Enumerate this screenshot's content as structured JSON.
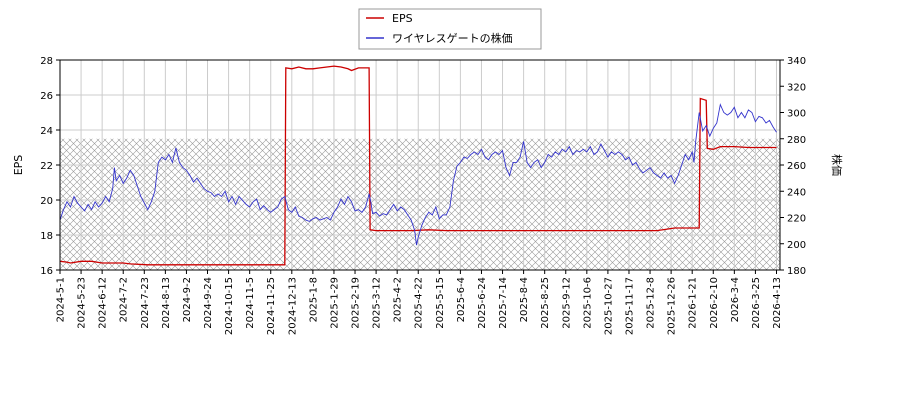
{
  "chart_data": {
    "type": "line",
    "title": "",
    "xlabel": "",
    "ylabel_left": "EPS",
    "ylabel_right": "株価",
    "ylim_left": [
      16,
      28
    ],
    "ylim_right": [
      180,
      340
    ],
    "yticks_left": [
      16,
      18,
      20,
      22,
      24,
      26,
      28
    ],
    "yticks_right": [
      180,
      200,
      220,
      240,
      260,
      280,
      300,
      320,
      340
    ],
    "x_tick_labels": [
      "2024-5-1",
      "2024-5-23",
      "2024-6-12",
      "2024-7-2",
      "2024-7-23",
      "2024-8-13",
      "2024-9-2",
      "2024-9-24",
      "2024-10-15",
      "2024-11-5",
      "2024-11-25",
      "2024-12-13",
      "2025-1-8",
      "2025-1-29",
      "2025-2-19",
      "2025-3-12",
      "2025-4-2",
      "2025-4-22",
      "2025-5-15",
      "2025-6-4",
      "2025-6-24",
      "2025-7-14",
      "2025-8-4",
      "2025-8-25",
      "2025-9-12",
      "2025-10-6",
      "2025-10-27",
      "2025-11-17",
      "2025-12-8",
      "2025-12-26",
      "2026-1-21",
      "2026-2-10",
      "2026-3-4",
      "2026-3-25",
      "2026-4-13"
    ],
    "grid": true,
    "legend_position": "top-center",
    "hatched_band_right": [
      180,
      280
    ],
    "series": [
      {
        "name": "EPS",
        "axis": "left",
        "color": "#cc0000",
        "points": [
          [
            0,
            16.5
          ],
          [
            2,
            16.45
          ],
          [
            3,
            16.4
          ],
          [
            6,
            16.5
          ],
          [
            9,
            16.5
          ],
          [
            12,
            16.4
          ],
          [
            15,
            16.4
          ],
          [
            18,
            16.4
          ],
          [
            20,
            16.35
          ],
          [
            25,
            16.3
          ],
          [
            30,
            16.3
          ],
          [
            35,
            16.3
          ],
          [
            40,
            16.3
          ],
          [
            45,
            16.3
          ],
          [
            50,
            16.3
          ],
          [
            55,
            16.3
          ],
          [
            60,
            16.3
          ],
          [
            64,
            16.3
          ],
          [
            64.3,
            27.55
          ],
          [
            66,
            27.5
          ],
          [
            68,
            27.6
          ],
          [
            70,
            27.5
          ],
          [
            72,
            27.5
          ],
          [
            74,
            27.55
          ],
          [
            76,
            27.6
          ],
          [
            78,
            27.65
          ],
          [
            80,
            27.6
          ],
          [
            82,
            27.5
          ],
          [
            83,
            27.4
          ],
          [
            85,
            27.55
          ],
          [
            88,
            27.55
          ],
          [
            88.3,
            18.3
          ],
          [
            90,
            18.25
          ],
          [
            95,
            18.25
          ],
          [
            100,
            18.25
          ],
          [
            105,
            18.3
          ],
          [
            110,
            18.25
          ],
          [
            115,
            18.25
          ],
          [
            120,
            18.25
          ],
          [
            125,
            18.25
          ],
          [
            130,
            18.25
          ],
          [
            135,
            18.25
          ],
          [
            140,
            18.25
          ],
          [
            145,
            18.25
          ],
          [
            150,
            18.25
          ],
          [
            155,
            18.25
          ],
          [
            160,
            18.25
          ],
          [
            165,
            18.25
          ],
          [
            170,
            18.25
          ],
          [
            175,
            18.4
          ],
          [
            180,
            18.4
          ],
          [
            182,
            18.4
          ],
          [
            182.3,
            25.8
          ],
          [
            184,
            25.7
          ],
          [
            184.3,
            22.95
          ],
          [
            186,
            22.9
          ],
          [
            188,
            23.05
          ],
          [
            192,
            23.05
          ],
          [
            196,
            23.0
          ],
          [
            200,
            23.0
          ],
          [
            204,
            23.0
          ]
        ]
      },
      {
        "name": "ワイヤレスゲートの株価",
        "axis": "right",
        "color": "#3333cc",
        "points": [
          [
            0,
            218
          ],
          [
            1,
            226
          ],
          [
            2,
            232
          ],
          [
            3,
            228
          ],
          [
            4,
            236
          ],
          [
            5,
            231
          ],
          [
            6,
            228
          ],
          [
            7,
            225
          ],
          [
            8,
            230
          ],
          [
            9,
            226
          ],
          [
            10,
            232
          ],
          [
            11,
            228
          ],
          [
            12,
            231
          ],
          [
            13,
            236
          ],
          [
            14,
            232
          ],
          [
            15,
            242
          ],
          [
            15.5,
            258
          ],
          [
            16,
            248
          ],
          [
            17,
            252
          ],
          [
            18,
            246
          ],
          [
            19,
            250
          ],
          [
            20,
            256
          ],
          [
            21,
            252
          ],
          [
            22,
            244
          ],
          [
            23,
            236
          ],
          [
            24,
            231
          ],
          [
            25,
            226
          ],
          [
            26,
            232
          ],
          [
            27,
            240
          ],
          [
            28,
            262
          ],
          [
            29,
            266
          ],
          [
            30,
            264
          ],
          [
            31,
            268
          ],
          [
            32,
            262
          ],
          [
            33,
            273
          ],
          [
            34,
            262
          ],
          [
            35,
            258
          ],
          [
            36,
            256
          ],
          [
            37,
            252
          ],
          [
            38,
            247
          ],
          [
            39,
            250
          ],
          [
            40,
            246
          ],
          [
            41,
            242
          ],
          [
            42,
            240
          ],
          [
            43,
            239
          ],
          [
            44,
            236
          ],
          [
            45,
            238
          ],
          [
            46,
            236
          ],
          [
            47,
            240
          ],
          [
            48,
            232
          ],
          [
            49,
            236
          ],
          [
            50,
            230
          ],
          [
            51,
            236
          ],
          [
            52,
            233
          ],
          [
            53,
            230
          ],
          [
            54,
            228
          ],
          [
            55,
            232
          ],
          [
            56,
            234
          ],
          [
            57,
            226
          ],
          [
            58,
            229
          ],
          [
            59,
            226
          ],
          [
            60,
            224
          ],
          [
            61,
            226
          ],
          [
            62,
            228
          ],
          [
            63,
            234
          ],
          [
            64,
            236
          ],
          [
            65,
            226
          ],
          [
            66,
            224
          ],
          [
            67,
            228
          ],
          [
            68,
            221
          ],
          [
            69,
            220
          ],
          [
            70,
            218
          ],
          [
            71,
            217
          ],
          [
            72,
            219
          ],
          [
            73,
            220
          ],
          [
            74,
            218
          ],
          [
            75,
            219
          ],
          [
            76,
            220
          ],
          [
            77,
            218
          ],
          [
            78,
            224
          ],
          [
            79,
            228
          ],
          [
            80,
            234
          ],
          [
            81,
            230
          ],
          [
            82,
            236
          ],
          [
            83,
            232
          ],
          [
            84,
            225
          ],
          [
            85,
            226
          ],
          [
            86,
            224
          ],
          [
            87,
            228
          ],
          [
            88,
            238
          ],
          [
            88.5,
            232
          ],
          [
            89,
            223
          ],
          [
            90,
            224
          ],
          [
            91,
            221
          ],
          [
            92,
            223
          ],
          [
            93,
            222
          ],
          [
            94,
            226
          ],
          [
            95,
            230
          ],
          [
            96,
            225
          ],
          [
            97,
            228
          ],
          [
            98,
            226
          ],
          [
            99,
            222
          ],
          [
            100,
            218
          ],
          [
            101,
            210
          ],
          [
            101.5,
            199
          ],
          [
            102,
            205
          ],
          [
            103,
            214
          ],
          [
            104,
            220
          ],
          [
            105,
            224
          ],
          [
            106,
            222
          ],
          [
            107,
            228
          ],
          [
            108,
            219
          ],
          [
            109,
            222
          ],
          [
            110,
            222
          ],
          [
            111,
            228
          ],
          [
            112,
            248
          ],
          [
            113,
            259
          ],
          [
            114,
            262
          ],
          [
            115,
            266
          ],
          [
            116,
            265
          ],
          [
            117,
            268
          ],
          [
            118,
            270
          ],
          [
            119,
            268
          ],
          [
            120,
            272
          ],
          [
            121,
            266
          ],
          [
            122,
            264
          ],
          [
            123,
            268
          ],
          [
            124,
            270
          ],
          [
            125,
            268
          ],
          [
            126,
            271
          ],
          [
            127,
            258
          ],
          [
            128,
            252
          ],
          [
            129,
            262
          ],
          [
            130,
            262
          ],
          [
            131,
            266
          ],
          [
            132,
            278
          ],
          [
            133,
            262
          ],
          [
            134,
            258
          ],
          [
            135,
            262
          ],
          [
            136,
            264
          ],
          [
            137,
            258
          ],
          [
            138,
            262
          ],
          [
            139,
            268
          ],
          [
            140,
            266
          ],
          [
            141,
            270
          ],
          [
            142,
            268
          ],
          [
            143,
            272
          ],
          [
            144,
            270
          ],
          [
            145,
            274
          ],
          [
            146,
            268
          ],
          [
            147,
            271
          ],
          [
            148,
            270
          ],
          [
            149,
            272
          ],
          [
            150,
            270
          ],
          [
            151,
            274
          ],
          [
            152,
            268
          ],
          [
            153,
            270
          ],
          [
            154,
            276
          ],
          [
            155,
            271
          ],
          [
            156,
            266
          ],
          [
            157,
            270
          ],
          [
            158,
            268
          ],
          [
            159,
            270
          ],
          [
            160,
            268
          ],
          [
            161,
            264
          ],
          [
            162,
            266
          ],
          [
            163,
            260
          ],
          [
            164,
            262
          ],
          [
            165,
            257
          ],
          [
            166,
            254
          ],
          [
            167,
            256
          ],
          [
            168,
            258
          ],
          [
            169,
            254
          ],
          [
            170,
            252
          ],
          [
            171,
            250
          ],
          [
            172,
            254
          ],
          [
            173,
            250
          ],
          [
            174,
            252
          ],
          [
            175,
            246
          ],
          [
            176,
            252
          ],
          [
            177,
            260
          ],
          [
            178,
            268
          ],
          [
            179,
            264
          ],
          [
            180,
            270
          ],
          [
            180.5,
            262
          ],
          [
            181,
            278
          ],
          [
            182,
            300
          ],
          [
            183,
            286
          ],
          [
            184,
            290
          ],
          [
            185,
            282
          ],
          [
            186,
            288
          ],
          [
            187,
            292
          ],
          [
            188,
            306
          ],
          [
            189,
            300
          ],
          [
            190,
            298
          ],
          [
            191,
            300
          ],
          [
            192,
            304
          ],
          [
            193,
            296
          ],
          [
            194,
            300
          ],
          [
            195,
            296
          ],
          [
            196,
            302
          ],
          [
            197,
            300
          ],
          [
            198,
            293
          ],
          [
            199,
            297
          ],
          [
            200,
            296
          ],
          [
            201,
            292
          ],
          [
            202,
            294
          ],
          [
            203,
            289
          ],
          [
            204,
            285
          ]
        ]
      }
    ]
  }
}
